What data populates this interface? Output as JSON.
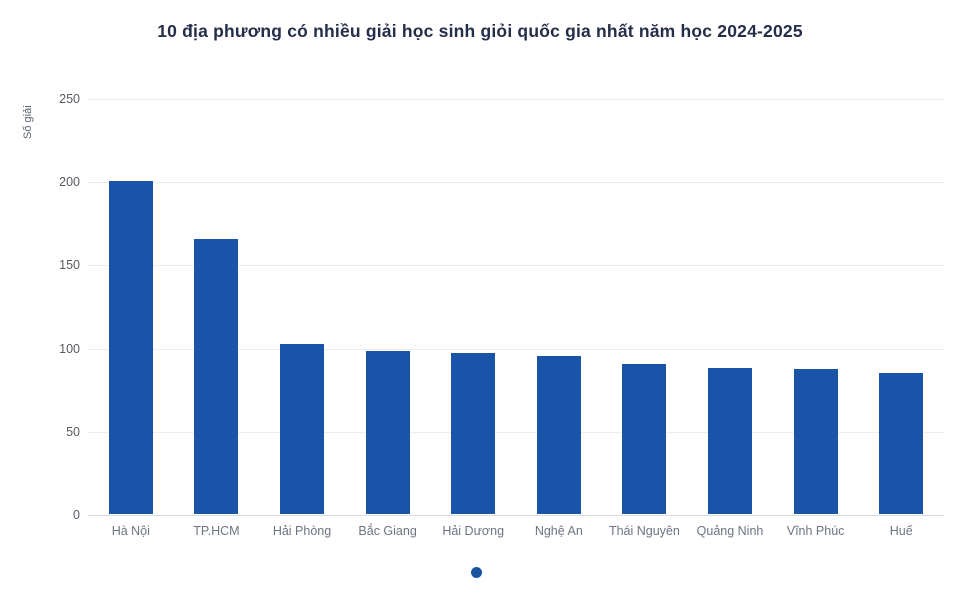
{
  "chart_data": {
    "type": "bar",
    "title": "10 địa phương có nhiều giải học sinh giỏi quốc gia nhất năm học 2024-2025",
    "categories": [
      "Hà Nội",
      "TP.HCM",
      "Hải Phòng",
      "Bắc Giang",
      "Hải Dương",
      "Nghệ An",
      "Thái Nguyên",
      "Quảng Ninh",
      "Vĩnh Phúc",
      "Huế"
    ],
    "values": [
      200,
      165,
      102,
      98,
      97,
      95,
      90,
      88,
      87,
      85
    ],
    "xlabel": "",
    "ylabel": "Số giải",
    "ylim": [
      0,
      250
    ],
    "yticks": [
      0,
      50,
      100,
      150,
      200,
      250
    ],
    "grid": true,
    "legend_position": "bottom",
    "bar_color": "#1a54a8",
    "legend_dot_color": "#17549e",
    "title_color": "#242e49"
  }
}
